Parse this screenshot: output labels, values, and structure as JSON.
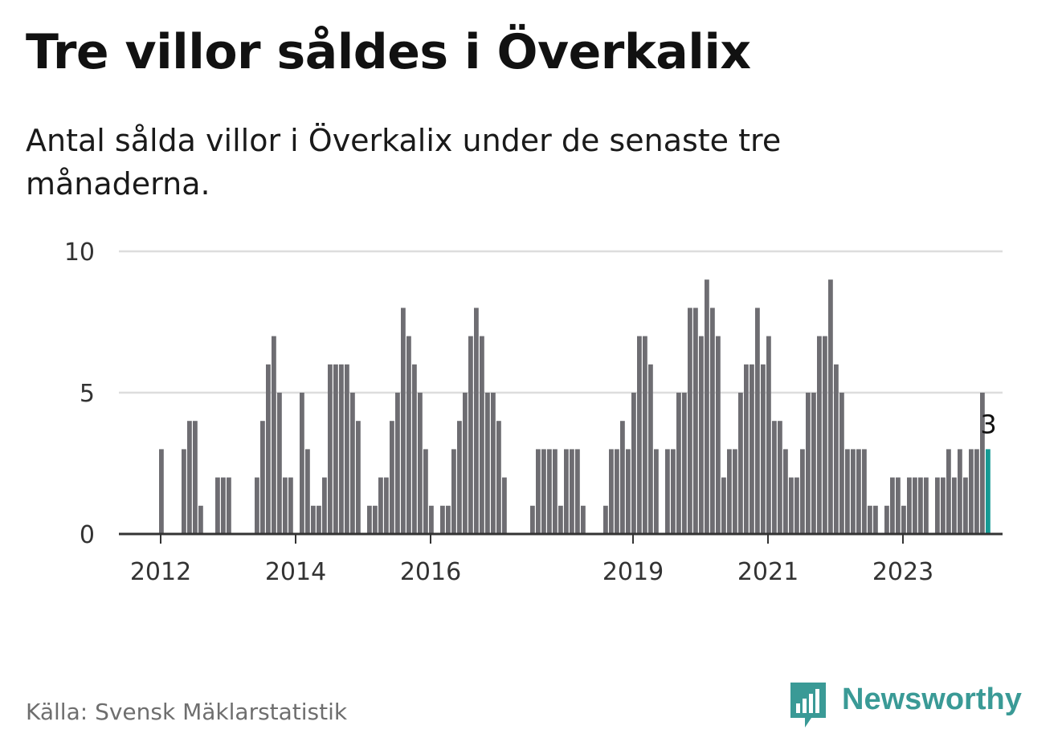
{
  "header": {
    "title": "Tre villor såldes i Överkalix",
    "subtitle": "Antal sålda villor i Överkalix under de senaste tre månaderna."
  },
  "footer": {
    "source": "Källa: Svensk Mäklarstatistik",
    "brand": "Newsworthy"
  },
  "colors": {
    "bar": "#6e6d72",
    "highlight": "#159a94",
    "grid": "#dddddd",
    "axis": "#333333",
    "brand": "#3a9a96"
  },
  "chart_data": {
    "type": "bar",
    "title": "Tre villor såldes i Överkalix",
    "xlabel": "",
    "ylabel": "",
    "ylim": [
      0,
      10
    ],
    "y_ticks": [
      0,
      5,
      10
    ],
    "grid": true,
    "x_tick_labels": [
      {
        "label": "2012",
        "index": 0
      },
      {
        "label": "2014",
        "index": 24
      },
      {
        "label": "2016",
        "index": 48
      },
      {
        "label": "2019",
        "index": 84
      },
      {
        "label": "2021",
        "index": 108
      },
      {
        "label": "2023",
        "index": 132
      }
    ],
    "first_bar_index": 0,
    "values": [
      3,
      0,
      0,
      0,
      3,
      4,
      4,
      1,
      0,
      0,
      2,
      2,
      2,
      0,
      0,
      0,
      0,
      2,
      4,
      6,
      7,
      5,
      2,
      2,
      0,
      5,
      3,
      1,
      1,
      2,
      6,
      6,
      6,
      6,
      5,
      4,
      0,
      1,
      1,
      2,
      2,
      4,
      5,
      8,
      7,
      6,
      5,
      3,
      1,
      0,
      1,
      1,
      3,
      4,
      5,
      7,
      8,
      7,
      5,
      5,
      4,
      2,
      0,
      0,
      0,
      0,
      1,
      3,
      3,
      3,
      3,
      1,
      3,
      3,
      3,
      1,
      0,
      0,
      0,
      1,
      3,
      3,
      4,
      3,
      5,
      7,
      7,
      6,
      3,
      0,
      3,
      3,
      5,
      5,
      8,
      8,
      7,
      9,
      8,
      7,
      2,
      3,
      3,
      5,
      6,
      6,
      8,
      6,
      7,
      4,
      4,
      3,
      2,
      2,
      3,
      5,
      5,
      7,
      7,
      9,
      6,
      5,
      3,
      3,
      3,
      3,
      1,
      1,
      0,
      1,
      2,
      2,
      1,
      2,
      2,
      2,
      2,
      0,
      2,
      2,
      3,
      2,
      3,
      2,
      3,
      3,
      5,
      3
    ],
    "highlight_last": true,
    "last_value_label": "3"
  }
}
